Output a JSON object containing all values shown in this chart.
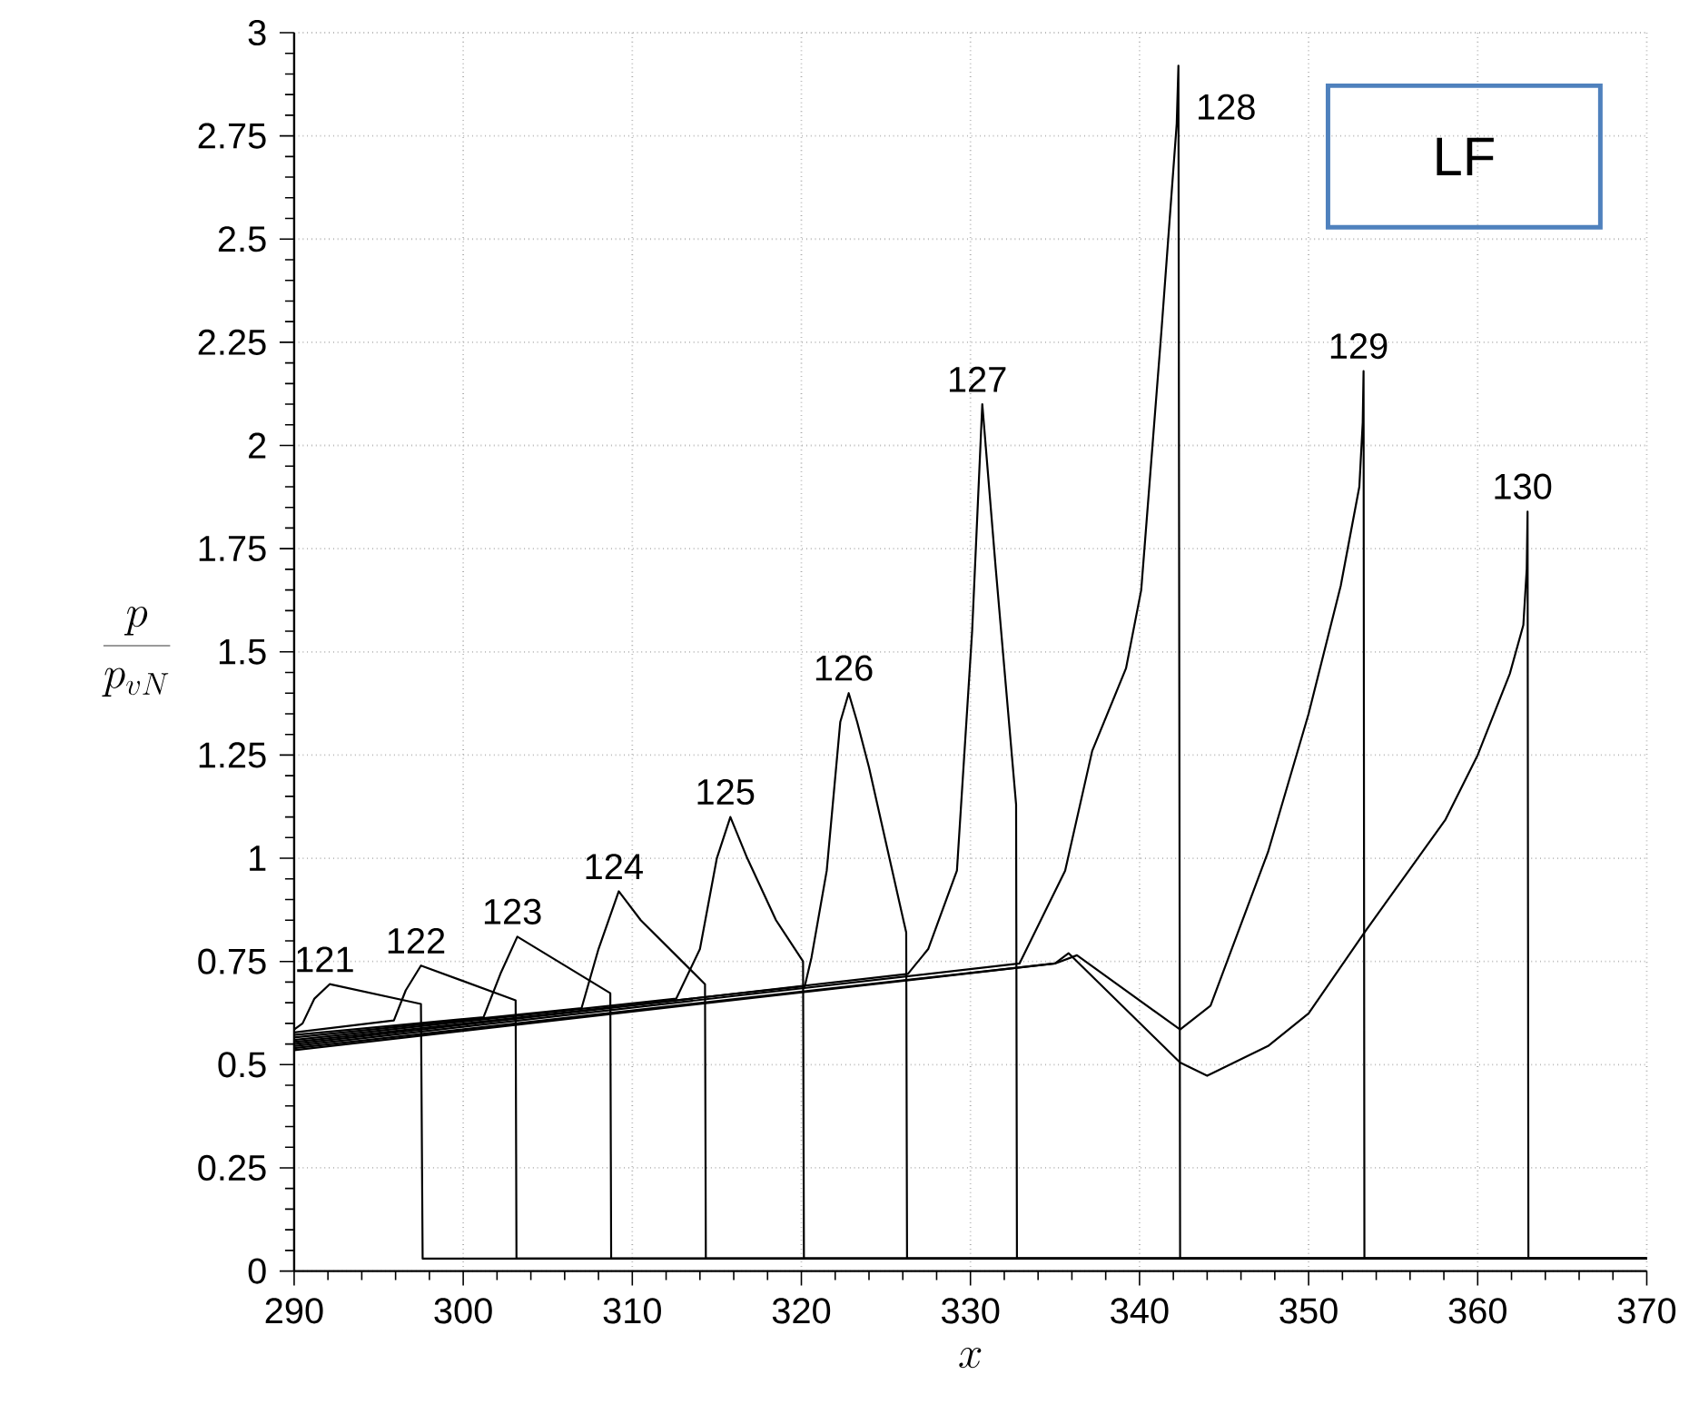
{
  "chart_data": {
    "type": "line",
    "xlabel": "x",
    "ylabel": "\\frac{p}{p_{vN}}",
    "xlim": [
      290,
      370
    ],
    "ylim": [
      0,
      3
    ],
    "xticks": [
      290,
      300,
      310,
      320,
      330,
      340,
      350,
      360,
      370
    ],
    "yticks": [
      0,
      0.25,
      0.5,
      0.75,
      1,
      1.25,
      1.5,
      1.75,
      2,
      2.25,
      2.5,
      2.75,
      3
    ],
    "grid": true,
    "marker": "none",
    "line_style": "solid",
    "annotations": [
      "LF"
    ],
    "series": [
      {
        "name": "121",
        "color": "#000000",
        "x": [
          290,
          290.5,
          291.2,
          292.1,
          297.5,
          297.6,
          370
        ],
        "values": [
          0.585,
          0.6,
          0.66,
          0.695,
          0.647,
          0.03,
          0.03
        ]
      },
      {
        "name": "122",
        "color": "#000000",
        "x": [
          290,
          295.9,
          296.6,
          297.5,
          303.1,
          303.15,
          370
        ],
        "values": [
          0.578,
          0.607,
          0.68,
          0.74,
          0.656,
          0.03,
          0.03
        ]
      },
      {
        "name": "123",
        "color": "#000000",
        "x": [
          290,
          301.2,
          302.2,
          303.2,
          308.7,
          308.75,
          370
        ],
        "values": [
          0.572,
          0.615,
          0.72,
          0.81,
          0.673,
          0.03,
          0.03
        ]
      },
      {
        "name": "124",
        "color": "#000000",
        "x": [
          290,
          307.0,
          308.0,
          309.2,
          310.5,
          314.3,
          314.35,
          370
        ],
        "values": [
          0.566,
          0.637,
          0.78,
          0.92,
          0.85,
          0.695,
          0.03,
          0.03
        ]
      },
      {
        "name": "125",
        "color": "#000000",
        "x": [
          290,
          312.6,
          314.0,
          315.0,
          315.8,
          316.8,
          318.5,
          320.1,
          320.15,
          370
        ],
        "values": [
          0.56,
          0.66,
          0.78,
          1.0,
          1.1,
          1.0,
          0.85,
          0.75,
          0.03,
          0.03
        ]
      },
      {
        "name": "126",
        "color": "#000000",
        "x": [
          290,
          320.2,
          320.6,
          321.5,
          322.3,
          322.8,
          323.3,
          324.0,
          326.2,
          326.25,
          370
        ],
        "values": [
          0.555,
          0.69,
          0.76,
          0.97,
          1.33,
          1.4,
          1.33,
          1.22,
          0.82,
          0.03,
          0.03
        ]
      },
      {
        "name": "127",
        "color": "#000000",
        "x": [
          290,
          326.3,
          327.5,
          329.2,
          330.1,
          330.7,
          331.5,
          332.7,
          332.75,
          370
        ],
        "values": [
          0.55,
          0.72,
          0.78,
          0.97,
          1.55,
          2.1,
          1.7,
          1.13,
          0.03,
          0.03
        ]
      },
      {
        "name": "128",
        "color": "#000000",
        "x": [
          290,
          332.9,
          335.6,
          337.2,
          339.2,
          340.1,
          341.3,
          342.2,
          342.3,
          342.4,
          370
        ],
        "values": [
          0.545,
          0.745,
          0.97,
          1.26,
          1.46,
          1.65,
          2.28,
          2.78,
          2.92,
          0.03,
          0.03
        ]
      },
      {
        "name": "129",
        "color": "#000000",
        "x": [
          290,
          335.0,
          336.3,
          342.4,
          344.2,
          347.6,
          350.0,
          351.9,
          353.0,
          353.2,
          353.25,
          353.3,
          370
        ],
        "values": [
          0.54,
          0.745,
          0.765,
          0.585,
          0.643,
          1.015,
          1.35,
          1.66,
          1.9,
          2.055,
          2.18,
          0.03,
          0.03
        ]
      },
      {
        "name": "130",
        "color": "#000000",
        "x": [
          290,
          335.0,
          335.8,
          342.4,
          344.0,
          347.6,
          350.0,
          353.3,
          355.7,
          358.1,
          360.0,
          361.9,
          362.7,
          362.9,
          362.95,
          363.0,
          370
        ],
        "values": [
          0.535,
          0.745,
          0.77,
          0.505,
          0.473,
          0.545,
          0.624,
          0.82,
          0.957,
          1.094,
          1.25,
          1.447,
          1.565,
          1.7,
          1.84,
          0.03,
          0.03
        ]
      }
    ]
  }
}
